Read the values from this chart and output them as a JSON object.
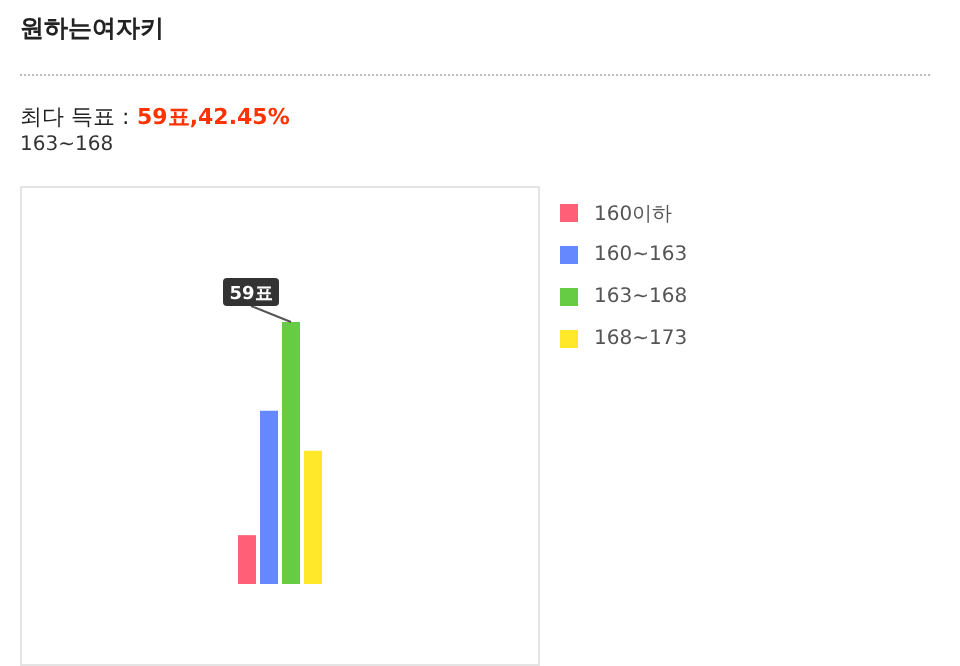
{
  "chart_data": {
    "type": "bar",
    "title": "원하는여자키",
    "subtitle": "최다 득표 : 59표,42.45%",
    "annotations": [
      "163~168"
    ],
    "categories": [
      null
    ],
    "legend": "right",
    "series": [
      {
        "name": "160이하",
        "color": "#ff6078",
        "values": [
          11
        ],
        "value_labels": [
          null
        ]
      },
      {
        "name": "160~163",
        "color": "#6688ff",
        "values": [
          39
        ],
        "value_labels": [
          null
        ]
      },
      {
        "name": "163~168",
        "color": "#66cc44",
        "values": [
          59
        ],
        "value_labels": [
          "59표"
        ]
      },
      {
        "name": "168~173",
        "color": "#ffe82a",
        "values": [
          30
        ],
        "value_labels": [
          null
        ]
      }
    ]
  }
}
